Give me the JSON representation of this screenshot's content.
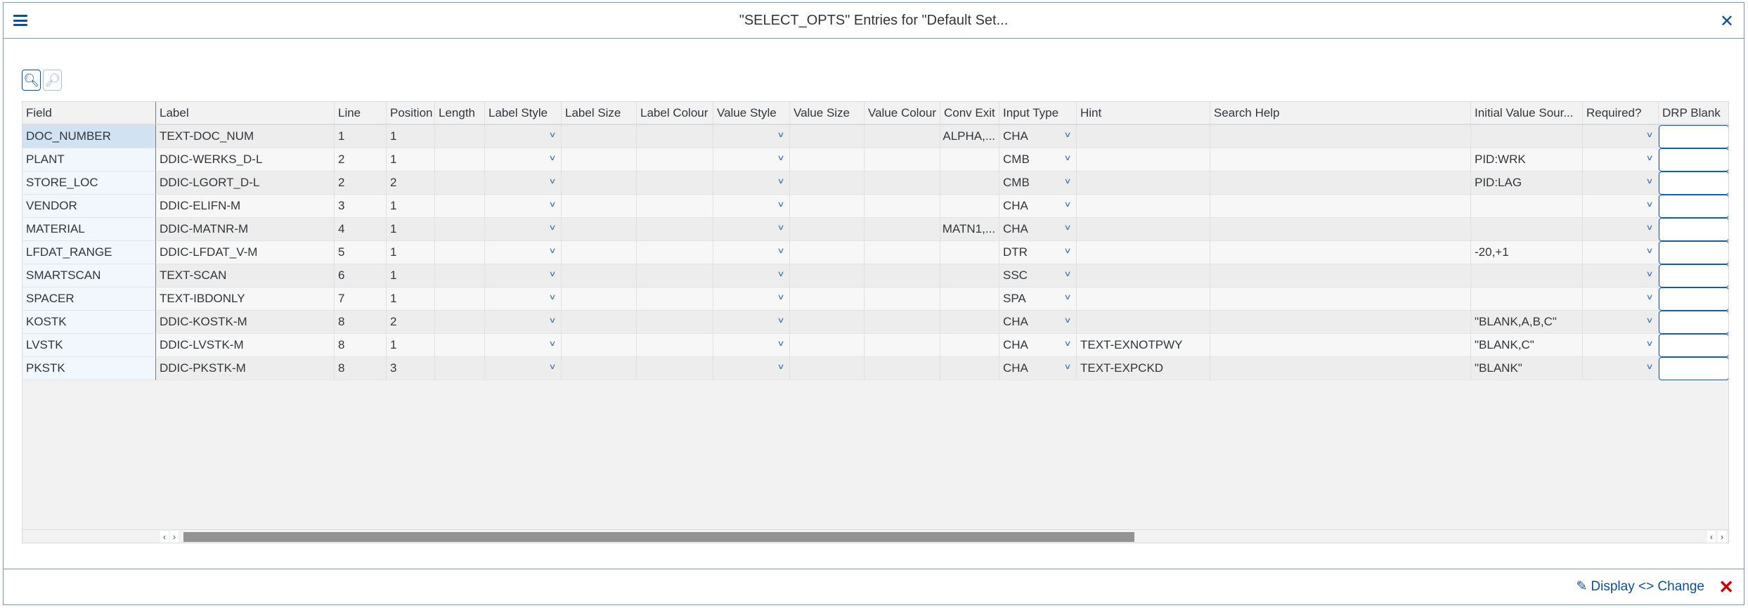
{
  "title": "\"SELECT_OPTS\" Entries for \"Default Set...",
  "columns": [
    "Field",
    "Label",
    "Line",
    "Position",
    "Length",
    "Label Style",
    "Label Size",
    "Label Colour",
    "Value Style",
    "Value Size",
    "Value Colour",
    "Conv Exit",
    "Input Type",
    "Hint",
    "Search Help",
    "Initial Value Sour...",
    "Required?",
    "DRP Blank"
  ],
  "rows": [
    {
      "field": "DOC_NUMBER",
      "label": "TEXT-DOC_NUM",
      "line": "1",
      "position": "1",
      "conv_exit": "ALPHA,...",
      "input_type": "CHA",
      "hint": "",
      "initial": ""
    },
    {
      "field": "PLANT",
      "label": "DDIC-WERKS_D-L",
      "line": "2",
      "position": "1",
      "conv_exit": "",
      "input_type": "CMB",
      "hint": "",
      "initial": "PID:WRK"
    },
    {
      "field": "STORE_LOC",
      "label": "DDIC-LGORT_D-L",
      "line": "2",
      "position": "2",
      "conv_exit": "",
      "input_type": "CMB",
      "hint": "",
      "initial": "PID:LAG"
    },
    {
      "field": "VENDOR",
      "label": "DDIC-ELIFN-M",
      "line": "3",
      "position": "1",
      "conv_exit": "",
      "input_type": "CHA",
      "hint": "",
      "initial": ""
    },
    {
      "field": "MATERIAL",
      "label": "DDIC-MATNR-M",
      "line": "4",
      "position": "1",
      "conv_exit": "MATN1,...",
      "input_type": "CHA",
      "hint": "",
      "initial": ""
    },
    {
      "field": "LFDAT_RANGE",
      "label": "DDIC-LFDAT_V-M",
      "line": "5",
      "position": "1",
      "conv_exit": "",
      "input_type": "DTR",
      "hint": "",
      "initial": "-20,+1"
    },
    {
      "field": "SMARTSCAN",
      "label": "TEXT-SCAN",
      "line": "6",
      "position": "1",
      "conv_exit": "",
      "input_type": "SSC",
      "hint": "",
      "initial": ""
    },
    {
      "field": "SPACER",
      "label": "TEXT-IBDONLY",
      "line": "7",
      "position": "1",
      "conv_exit": "",
      "input_type": "SPA",
      "hint": "",
      "initial": ""
    },
    {
      "field": "KOSTK",
      "label": "DDIC-KOSTK-M",
      "line": "8",
      "position": "2",
      "conv_exit": "",
      "input_type": "CHA",
      "hint": "",
      "initial": "\"BLANK,A,B,C\""
    },
    {
      "field": "LVSTK",
      "label": "DDIC-LVSTK-M",
      "line": "8",
      "position": "1",
      "conv_exit": "",
      "input_type": "CHA",
      "hint": "TEXT-EXNOTPWY",
      "initial": "\"BLANK,C\""
    },
    {
      "field": "PKSTK",
      "label": "DDIC-PKSTK-M",
      "line": "8",
      "position": "3",
      "conv_exit": "",
      "input_type": "CHA",
      "hint": "TEXT-EXPCKD",
      "initial": "\"BLANK\""
    }
  ],
  "selected_row": 0,
  "footer": {
    "toggle_label": "Display <> Change"
  },
  "icons": {
    "menu": "hamburger-icon",
    "close": "close-icon",
    "search": "search-icon",
    "zoom_in": "zoom-in-icon",
    "toggle": "glasses-pencil-icon",
    "cancel": "cancel-icon"
  },
  "colors": {
    "accent": "#0a4f99",
    "cancel": "#cc0000",
    "selected": "#d1e3f3"
  }
}
